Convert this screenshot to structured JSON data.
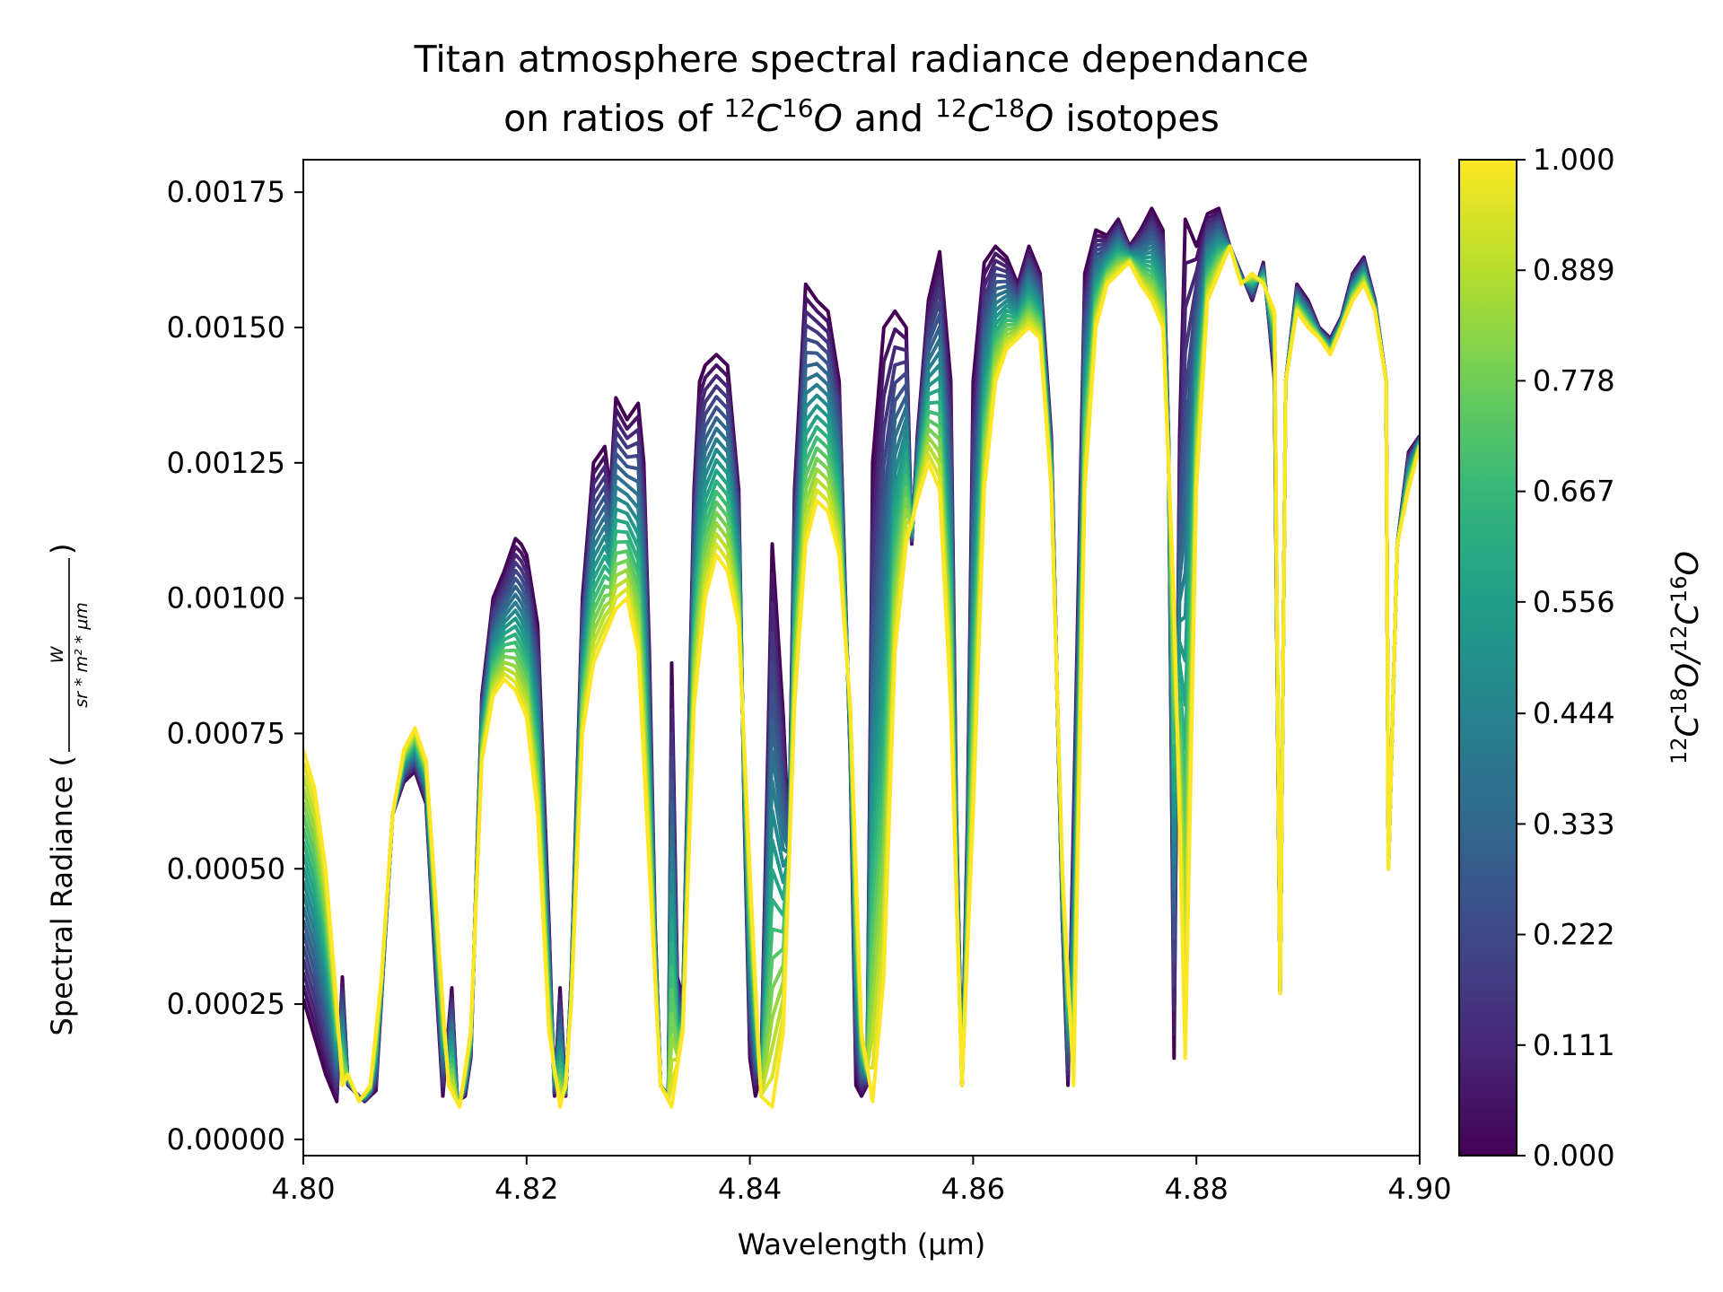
{
  "chart_data": {
    "type": "line",
    "title_line1": "Titan atmosphere spectral radiance dependance",
    "title_line2_parts": [
      "on ratios of ",
      "12",
      "C",
      "16",
      "O",
      " and ",
      "12",
      "C",
      "18",
      "O",
      " isotopes"
    ],
    "xlabel": "Wavelength (μm)",
    "ylabel_prefix": "Spectral Radiance (",
    "ylabel_suffix": ")",
    "ylabel_fraction": {
      "numerator": "W",
      "denominator": "sr * m² * μm"
    },
    "xlim": [
      4.8,
      4.9
    ],
    "ylim": [
      -3e-05,
      0.00181
    ],
    "xticks": [
      "4.80",
      "4.82",
      "4.84",
      "4.86",
      "4.88",
      "4.90"
    ],
    "yticks": [
      "0.00000",
      "0.00025",
      "0.00050",
      "0.00075",
      "0.00100",
      "0.00125",
      "0.00150",
      "0.00175"
    ],
    "grid": false,
    "colorbar": {
      "colormap": "viridis",
      "range": [
        0.0,
        1.0
      ],
      "ticks": [
        "0.000",
        "0.111",
        "0.222",
        "0.333",
        "0.444",
        "0.556",
        "0.667",
        "0.778",
        "0.889",
        "1.000"
      ],
      "label_parts": [
        "12",
        "C",
        "18",
        "O/",
        "12",
        "C",
        "16",
        "O"
      ]
    },
    "series_ratios": [
      0.0,
      0.0526,
      0.1053,
      0.1579,
      0.2105,
      0.2632,
      0.3158,
      0.3684,
      0.4211,
      0.4737,
      0.5263,
      0.5789,
      0.6316,
      0.6842,
      0.7368,
      0.7895,
      0.8421,
      0.8947,
      0.9474,
      1.0
    ],
    "envelope_ratio0": {
      "x": [
        4.8,
        4.802,
        4.803,
        4.8035,
        4.804,
        4.8055,
        4.8065,
        4.808,
        4.809,
        4.81,
        4.811,
        4.812,
        4.8125,
        4.8133,
        4.8138,
        4.8145,
        4.815,
        4.816,
        4.817,
        4.818,
        4.819,
        4.8195,
        4.82,
        4.821,
        4.822,
        4.8225,
        4.823,
        4.8235,
        4.824,
        4.825,
        4.826,
        4.827,
        4.8275,
        4.828,
        4.829,
        4.83,
        4.8305,
        4.831,
        4.8315,
        4.832,
        4.8327,
        4.833,
        4.8335,
        4.834,
        4.835,
        4.8355,
        4.836,
        4.837,
        4.838,
        4.839,
        4.8395,
        4.84,
        4.8405,
        4.841,
        4.842,
        4.843,
        4.8435,
        4.844,
        4.845,
        4.846,
        4.847,
        4.848,
        4.849,
        4.8495,
        4.85,
        4.8505,
        4.851,
        4.852,
        4.853,
        4.854,
        4.8545,
        4.855,
        4.856,
        4.857,
        4.858,
        4.8585,
        4.859,
        4.8595,
        4.86,
        4.861,
        4.862,
        4.863,
        4.864,
        4.865,
        4.866,
        4.867,
        4.868,
        4.8685,
        4.869,
        4.87,
        4.871,
        4.872,
        4.873,
        4.874,
        4.875,
        4.876,
        4.877,
        4.8775,
        4.878,
        4.8785,
        4.879,
        4.88,
        4.881,
        4.882,
        4.883,
        4.884,
        4.885,
        4.886,
        4.887,
        4.8875,
        4.888,
        4.889,
        4.89,
        4.891,
        4.892,
        4.893,
        4.894,
        4.895,
        4.896,
        4.897,
        4.8972,
        4.898,
        4.899,
        4.9
      ],
      "y": [
        0.00026,
        0.00012,
        7e-05,
        0.0003,
        0.0001,
        7e-05,
        9e-05,
        0.0006,
        0.00066,
        0.00068,
        0.00062,
        0.00025,
        8e-05,
        0.00028,
        7e-05,
        8e-05,
        0.00015,
        0.00082,
        0.001,
        0.00105,
        0.00111,
        0.0011,
        0.00108,
        0.00095,
        0.0004,
        8e-05,
        0.00028,
        8e-05,
        0.0003,
        0.001,
        0.00125,
        0.00128,
        0.0012,
        0.00137,
        0.00133,
        0.00136,
        0.00125,
        0.0009,
        0.0004,
        0.0001,
        8e-05,
        0.00088,
        0.0003,
        0.00026,
        0.0012,
        0.0014,
        0.00143,
        0.00145,
        0.00143,
        0.0012,
        0.0006,
        0.00015,
        8e-05,
        0.00012,
        0.0011,
        0.00078,
        0.00055,
        0.0012,
        0.00158,
        0.00155,
        0.00153,
        0.0014,
        0.0007,
        0.0001,
        8e-05,
        0.0001,
        0.00125,
        0.0015,
        0.00153,
        0.0015,
        0.0011,
        0.0013,
        0.00155,
        0.00164,
        0.0014,
        0.0006,
        0.0001,
        0.0006,
        0.0014,
        0.00162,
        0.00165,
        0.00163,
        0.00158,
        0.00165,
        0.0016,
        0.0013,
        0.0004,
        0.0001,
        0.0006,
        0.0016,
        0.00168,
        0.00167,
        0.0017,
        0.00165,
        0.00168,
        0.00172,
        0.00168,
        0.0013,
        0.00015,
        0.0013,
        0.0017,
        0.00165,
        0.00171,
        0.00172,
        0.00165,
        0.0016,
        0.00155,
        0.00162,
        0.0014,
        0.00027,
        0.0014,
        0.00158,
        0.00155,
        0.0015,
        0.00148,
        0.00152,
        0.0016,
        0.00163,
        0.00155,
        0.0014,
        0.0005,
        0.0011,
        0.00127,
        0.0013
      ]
    },
    "envelope_ratio1": {
      "x": [
        4.8,
        4.801,
        4.802,
        4.803,
        4.8035,
        4.804,
        4.805,
        4.806,
        4.807,
        4.808,
        4.809,
        4.81,
        4.811,
        4.812,
        4.813,
        4.8135,
        4.814,
        4.815,
        4.816,
        4.817,
        4.818,
        4.819,
        4.82,
        4.821,
        4.822,
        4.823,
        4.8235,
        4.824,
        4.825,
        4.826,
        4.827,
        4.828,
        4.829,
        4.83,
        4.831,
        4.832,
        4.833,
        4.834,
        4.835,
        4.836,
        4.837,
        4.838,
        4.839,
        4.84,
        4.841,
        4.842,
        4.843,
        4.844,
        4.845,
        4.846,
        4.847,
        4.848,
        4.849,
        4.85,
        4.851,
        4.852,
        4.853,
        4.854,
        4.855,
        4.856,
        4.857,
        4.858,
        4.859,
        4.86,
        4.861,
        4.862,
        4.863,
        4.864,
        4.865,
        4.866,
        4.867,
        4.868,
        4.869,
        4.87,
        4.871,
        4.872,
        4.873,
        4.874,
        4.875,
        4.876,
        4.877,
        4.878,
        4.879,
        4.88,
        4.881,
        4.882,
        4.883,
        4.884,
        4.885,
        4.886,
        4.887,
        4.8875,
        4.888,
        4.889,
        4.89,
        4.891,
        4.892,
        4.893,
        4.894,
        4.895,
        4.896,
        4.897,
        4.8972,
        4.898,
        4.899,
        4.9
      ],
      "y": [
        0.00072,
        0.00065,
        0.0005,
        0.00025,
        0.0001,
        0.00012,
        7e-05,
        0.0001,
        0.0003,
        0.0006,
        0.00072,
        0.00076,
        0.0007,
        0.0004,
        0.0001,
        8e-05,
        6e-05,
        0.0002,
        0.0007,
        0.00082,
        0.00085,
        0.00083,
        0.00078,
        0.0006,
        0.0002,
        6e-05,
        0.0001,
        0.00025,
        0.00075,
        0.00088,
        0.00093,
        0.00098,
        0.001,
        0.0009,
        0.0005,
        0.0001,
        6e-05,
        0.0002,
        0.0008,
        0.001,
        0.00108,
        0.00105,
        0.00095,
        0.0005,
        8e-05,
        6e-05,
        0.0002,
        0.0008,
        0.0011,
        0.00118,
        0.00116,
        0.00108,
        0.0008,
        0.0002,
        7e-05,
        0.0003,
        0.0009,
        0.0011,
        0.00118,
        0.00125,
        0.0012,
        0.0008,
        0.0001,
        0.0006,
        0.0012,
        0.0014,
        0.00146,
        0.00148,
        0.0015,
        0.00148,
        0.0012,
        0.0005,
        0.0001,
        0.0012,
        0.0015,
        0.00158,
        0.0016,
        0.00162,
        0.00158,
        0.00155,
        0.0015,
        0.001,
        0.00015,
        0.0012,
        0.00155,
        0.0016,
        0.00165,
        0.00158,
        0.0016,
        0.00158,
        0.00153,
        0.00027,
        0.0014,
        0.00153,
        0.0015,
        0.00148,
        0.00145,
        0.0015,
        0.00155,
        0.00158,
        0.00153,
        0.0014,
        0.0005,
        0.0011,
        0.0012,
        0.00128
      ]
    }
  }
}
